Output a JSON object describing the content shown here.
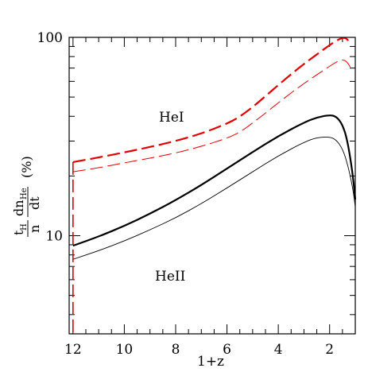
{
  "chart_data": {
    "type": "line",
    "title": "",
    "xlabel": "1+z",
    "ylabel": {
      "parts": [
        "t",
        "H",
        "n",
        "dn",
        "He",
        "dt",
        "(%)"
      ]
    },
    "xlim": [
      12.15,
      1.0
    ],
    "ylim": [
      3.2,
      100
    ],
    "yscale": "log",
    "grid": false,
    "x_tick_labels": [
      "12",
      "10",
      "8",
      "6",
      "4",
      "2"
    ],
    "y_tick_labels": [
      "10",
      "100"
    ],
    "annotations": [
      {
        "text": "HeI",
        "x": 7.5,
        "y": 40
      },
      {
        "text": "HeII",
        "x": 7.5,
        "y": 5.3
      }
    ],
    "series": [
      {
        "style": "dashed-thick",
        "color": "#e00000",
        "x": [
          12.0,
          11.0,
          10.0,
          9.0,
          8.0,
          7.0,
          6.0,
          5.5,
          5.0,
          4.5,
          4.0,
          3.5,
          3.0,
          2.5,
          2.0,
          1.75,
          1.55,
          1.4,
          1.3,
          1.2
        ],
        "y": [
          23.5,
          24.8,
          26.3,
          28.0,
          30.0,
          32.7,
          36.7,
          39.8,
          44.5,
          50.5,
          57.5,
          65.2,
          73.5,
          82.0,
          91.5,
          96.0,
          99.0,
          99.6,
          97.5,
          93.0
        ]
      },
      {
        "style": "dashed-thin",
        "color": "#e00000",
        "x": [
          12.0,
          11.0,
          10.0,
          9.0,
          8.0,
          7.0,
          6.0,
          5.5,
          5.0,
          4.5,
          4.0,
          3.5,
          3.0,
          2.5,
          2.0,
          1.75,
          1.55,
          1.4,
          1.3,
          1.2
        ],
        "y": [
          21.0,
          22.0,
          23.3,
          24.6,
          26.1,
          28.2,
          31.0,
          33.2,
          37.0,
          41.5,
          46.8,
          52.5,
          58.5,
          64.8,
          71.5,
          75.0,
          77.0,
          76.5,
          74.5,
          71.0
        ]
      },
      {
        "style": "solid-thick",
        "color": "#000000",
        "x": [
          12.0,
          11.0,
          10.0,
          9.0,
          8.0,
          7.0,
          6.0,
          5.0,
          4.0,
          3.0,
          2.5,
          2.0,
          1.75,
          1.5,
          1.3,
          1.1,
          1.0
        ],
        "y": [
          8.9,
          9.9,
          11.2,
          12.9,
          15.1,
          18.0,
          21.8,
          26.4,
          31.8,
          37.2,
          39.5,
          40.6,
          40.0,
          36.5,
          30.0,
          20.5,
          15.2
        ]
      },
      {
        "style": "solid-thin",
        "color": "#000000",
        "x": [
          12.0,
          11.0,
          10.0,
          9.0,
          8.0,
          7.0,
          6.0,
          5.0,
          4.0,
          3.0,
          2.5,
          2.0,
          1.75,
          1.5,
          1.3,
          1.1,
          1.0
        ],
        "y": [
          7.6,
          8.4,
          9.4,
          10.7,
          12.3,
          14.5,
          17.4,
          21.0,
          25.3,
          29.6,
          31.3,
          31.5,
          30.5,
          27.5,
          23.0,
          17.5,
          14.0
        ]
      }
    ]
  }
}
